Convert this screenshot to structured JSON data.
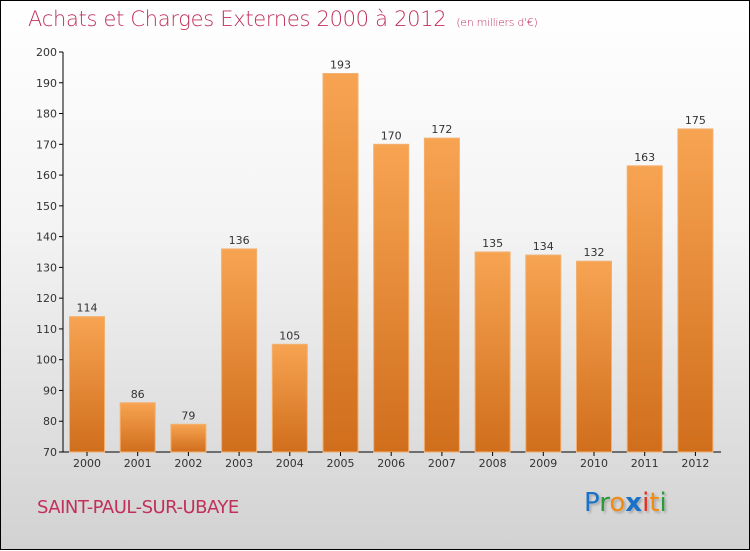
{
  "chart_data": {
    "type": "bar",
    "title": "Achats et Charges Externes 2000 à 2012",
    "subtitle": "(en milliers d'€)",
    "categories": [
      "2000",
      "2001",
      "2002",
      "2003",
      "2004",
      "2005",
      "2006",
      "2007",
      "2008",
      "2009",
      "2010",
      "2011",
      "2012"
    ],
    "values": [
      114,
      86,
      79,
      136,
      105,
      193,
      170,
      172,
      135,
      134,
      132,
      163,
      175
    ],
    "ylim": [
      70,
      200
    ],
    "yticks": [
      70,
      80,
      90,
      100,
      110,
      120,
      130,
      140,
      150,
      160,
      170,
      180,
      190,
      200
    ],
    "xlabel": "",
    "ylabel": "",
    "bar_color_top": "#f7a452",
    "bar_color_bottom": "#d06e1c"
  },
  "footer": {
    "city": "SAINT-PAUL-SUR-UBAYE",
    "logo": "Proxiti"
  }
}
